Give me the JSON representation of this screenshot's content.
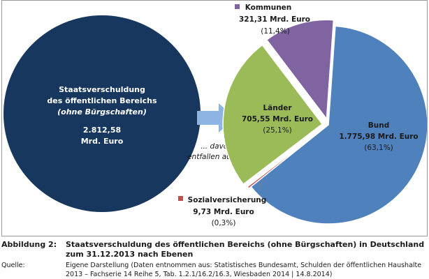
{
  "chart_data": {
    "type": "pie",
    "total": {
      "line1": "Staatsverschuldung",
      "line2": "des öffentlichen Bereichs",
      "line3": "(ohne Bürgschaften)",
      "value": "2.812,58",
      "unit": "Mrd. Euro"
    },
    "connector_text": [
      "... davon",
      "entfallen auf ..."
    ],
    "slices": [
      {
        "name": "Bund",
        "amount_label": "1.775,98 Mrd. Euro",
        "value": 1775.98,
        "percent_label": "(63,1%)",
        "color": "#4f81bd"
      },
      {
        "name": "Sozialversicherung",
        "amount_label": "9,73 Mrd. Euro",
        "value": 9.73,
        "percent_label": "(0,3%)",
        "color": "#c0504d"
      },
      {
        "name": "Länder",
        "amount_label": "705,55 Mrd. Euro",
        "value": 705.55,
        "percent_label": "(25,1%)",
        "color": "#9bbb59"
      },
      {
        "name": "Kommunen",
        "amount_label": "321,31 Mrd. Euro",
        "value": 321.31,
        "percent_label": "(11,4%)",
        "color": "#8064a2"
      }
    ],
    "colors": {
      "total_circle": "#17375e",
      "arrow": "#8db4e2"
    }
  },
  "caption": {
    "label": "Abbildung 2:",
    "title_line1": "Staatsverschuldung des öffentlichen Bereichs (ohne Bürgschaften) in Deutschland",
    "title_line2": "zum 31.12.2013 nach Ebenen"
  },
  "source": {
    "label": "Quelle:",
    "line1": "Eigene Darstellung (Daten entnommen aus: Statistisches Bundesamt, Schulden der öffentlichen Haushalte",
    "line2": "2013 – Fachserie 14 Reihe 5, Tab. 1.2.1/16.2/16.3,  Wiesbaden 2014 |  14.8.2014)"
  }
}
